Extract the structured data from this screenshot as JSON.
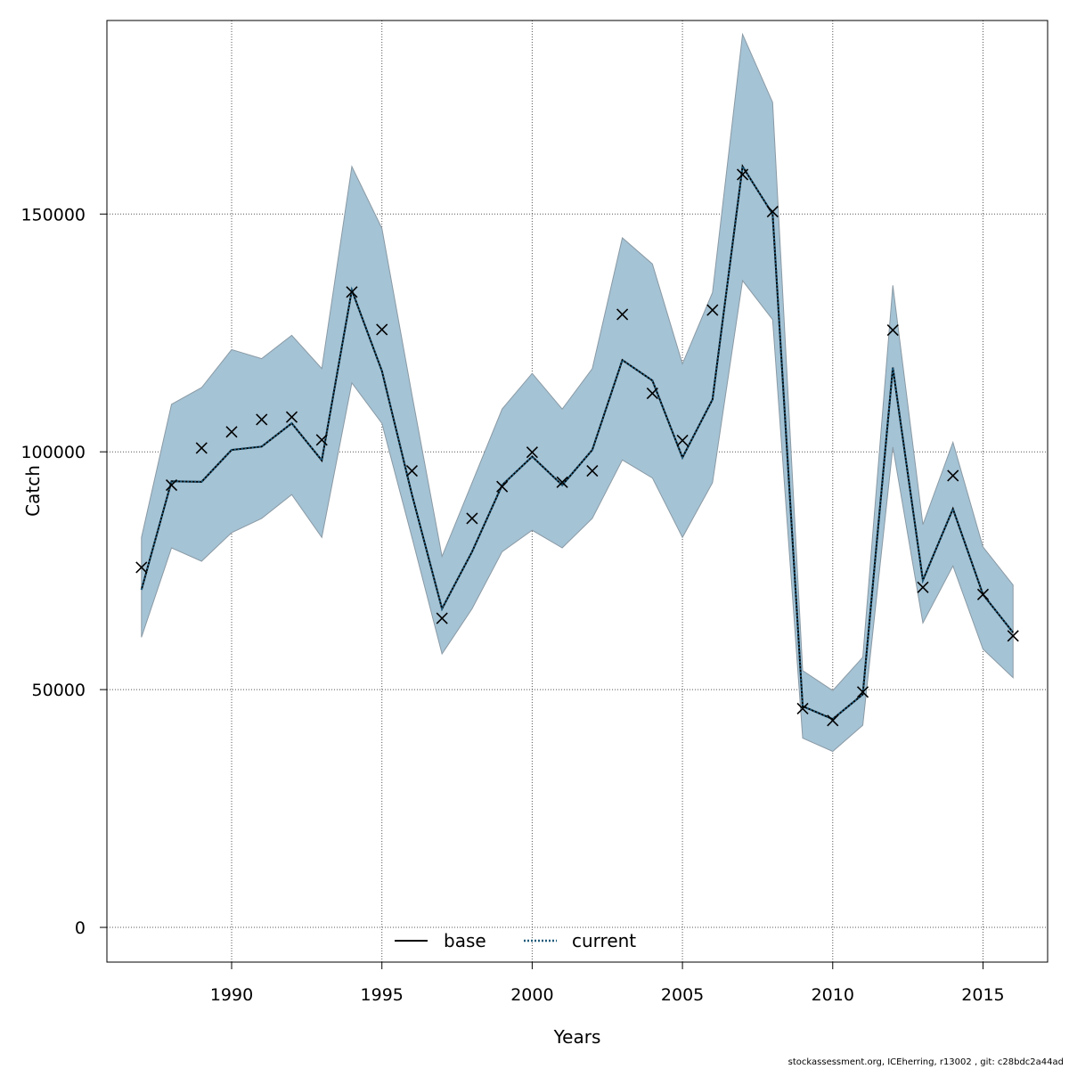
{
  "chart_data": {
    "type": "line",
    "xlabel": "Years",
    "ylabel": "Catch",
    "xlim": [
      1985.85,
      1987.0,
      2016.0
    ],
    "x_range": [
      1985.85,
      2017.15
    ],
    "y_range": [
      -7300,
      190700
    ],
    "x_ticks": [
      1990,
      1995,
      2000,
      2005,
      2010,
      2015
    ],
    "y_ticks": [
      0,
      50000,
      100000,
      150000
    ],
    "grid": true,
    "legend": {
      "placement": "bottom",
      "entries": [
        {
          "name": "base",
          "style": "solid",
          "color": "#000000"
        },
        {
          "name": "current",
          "style": "dotted",
          "color": "#1f5a7a"
        }
      ]
    },
    "band_color": "#a4c3d5",
    "band_edge_color": "#8a9aa5",
    "x": [
      1987,
      1988,
      1989,
      1990,
      1991,
      1992,
      1993,
      1994,
      1995,
      1996,
      1997,
      1998,
      1999,
      2000,
      2001,
      2002,
      2003,
      2004,
      2005,
      2006,
      2007,
      2008,
      2009,
      2010,
      2011,
      2012,
      2013,
      2014,
      2015,
      2016
    ],
    "series": [
      {
        "name": "base",
        "values": [
          71000,
          93800,
          93700,
          100400,
          101100,
          106000,
          98200,
          134000,
          117000,
          91000,
          67000,
          79000,
          93000,
          99000,
          93000,
          100400,
          119300,
          115000,
          98800,
          111000,
          160000,
          150000,
          46500,
          43800,
          49000,
          117700,
          73000,
          88000,
          70000,
          62000
        ]
      },
      {
        "name": "current",
        "values": [
          71000,
          93800,
          93700,
          100400,
          101100,
          106000,
          98200,
          134000,
          117000,
          91000,
          67000,
          79000,
          93000,
          99000,
          93000,
          100400,
          119300,
          115000,
          98800,
          111000,
          160000,
          150000,
          46500,
          43800,
          49000,
          117700,
          73000,
          88000,
          70000,
          62000
        ]
      }
    ],
    "band_upper": [
      82000,
      110000,
      113500,
      121500,
      119600,
      124500,
      117500,
      160000,
      147000,
      112000,
      78000,
      93500,
      109000,
      116500,
      109000,
      117500,
      145000,
      139500,
      118500,
      133500,
      187800,
      173500,
      54000,
      49800,
      56800,
      135000,
      84700,
      102000,
      80000,
      72000
    ],
    "band_lower": [
      61000,
      79800,
      77000,
      83000,
      86000,
      91000,
      82000,
      114500,
      106000,
      82000,
      57500,
      67000,
      79000,
      83500,
      79800,
      86000,
      98300,
      94500,
      82000,
      93500,
      136000,
      127800,
      39800,
      37000,
      42500,
      101000,
      64000,
      76000,
      58500,
      52500
    ],
    "observed": [
      75700,
      93000,
      100800,
      104200,
      106800,
      107300,
      102500,
      133600,
      125700,
      96000,
      65000,
      86000,
      92700,
      99900,
      93600,
      96000,
      128900,
      112300,
      102400,
      129800,
      158300,
      150500,
      46000,
      43500,
      49500,
      125600,
      71500,
      95000,
      70000,
      61300
    ]
  },
  "footer_text": "stockassessment.org, ICEherring, r13002 , git: c28bdc2a44ad"
}
